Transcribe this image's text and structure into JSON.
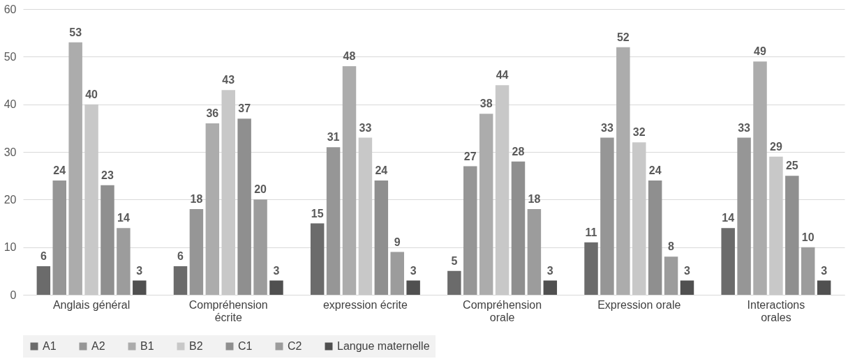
{
  "chart_data": {
    "type": "bar",
    "categories": [
      "Anglais général",
      "Compréhension écrite",
      "expression écrite",
      "Compréhension orale",
      "Expression orale",
      "Interactions orales"
    ],
    "series": [
      {
        "name": "A1",
        "color": "#6b6b6b",
        "values": [
          6,
          6,
          15,
          5,
          11,
          14
        ]
      },
      {
        "name": "A2",
        "color": "#969696",
        "values": [
          24,
          18,
          31,
          27,
          33,
          33
        ]
      },
      {
        "name": "B1",
        "color": "#acacac",
        "values": [
          53,
          36,
          48,
          38,
          52,
          49
        ]
      },
      {
        "name": "B2",
        "color": "#c8c8c8",
        "values": [
          40,
          43,
          33,
          44,
          32,
          29
        ]
      },
      {
        "name": "C1",
        "color": "#8f8f8f",
        "values": [
          23,
          37,
          24,
          28,
          24,
          25
        ]
      },
      {
        "name": "C2",
        "color": "#9c9c9c",
        "values": [
          14,
          20,
          9,
          18,
          8,
          10
        ]
      },
      {
        "name": "Langue maternelle",
        "color": "#505050",
        "values": [
          3,
          3,
          3,
          3,
          3,
          3
        ]
      }
    ],
    "ylim": [
      0,
      60
    ],
    "yticks": [
      0,
      10,
      20,
      30,
      40,
      50,
      60
    ],
    "grid": "y",
    "legend": "bottom",
    "data_labels": true
  }
}
